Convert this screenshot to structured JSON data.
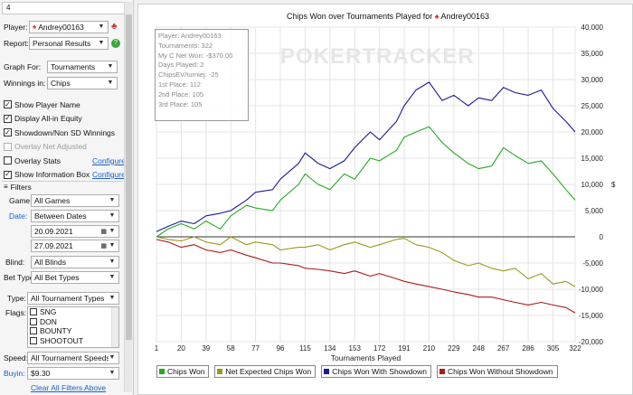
{
  "sidebar": {
    "top_strip_text": "4",
    "player_label": "Player:",
    "player_value": "Andrey00163",
    "report_label": "Report:",
    "report_value": "Personal Results",
    "graph_for_label": "Graph For:",
    "graph_for_value": "Tournaments",
    "winnings_label": "Winnings in:",
    "winnings_value": "Chips",
    "checks": [
      {
        "label": "Show Player Name",
        "checked": true
      },
      {
        "label": "Display All-in Equity",
        "checked": true
      },
      {
        "label": "Showdown/Non SD Winnings",
        "checked": true
      },
      {
        "label": "Overlay Net Adjusted",
        "checked": false,
        "disabled": true
      },
      {
        "label": "Overlay Stats",
        "checked": false,
        "link": "Configure"
      },
      {
        "label": "Show Information Box",
        "checked": true,
        "link": "Configure"
      }
    ],
    "filters_header": "Filters",
    "game_label": "Game:",
    "game_value": "All Games",
    "date_label": "Date:",
    "date_value": "Between Dates",
    "date_from": "20.09.2021",
    "date_to": "27.09.2021",
    "blind_label": "Blind:",
    "blind_value": "All Blinds",
    "bet_type_label": "Bet Type:",
    "bet_type_value": "All Bet Types",
    "type_label": "Type:",
    "type_value": "All Tournament Types",
    "flags_label": "Flags:",
    "flags": [
      "SNG",
      "DON",
      "BOUNTY",
      "SHOOTOUT"
    ],
    "speed_label": "Speed:",
    "speed_value": "All Tournament Speeds",
    "buyin_label": "Buyin:",
    "buyin_value": "$9.30",
    "clear_filters": "Clear All Filters Above"
  },
  "chart_title_prefix": "Chips Won over Tournaments Played for",
  "chart_title_player": "Andrey00163",
  "watermark": "POKERTRACKER",
  "info_box": [
    "Player: Andrey00163",
    "Tournaments: 322",
    "My C Net Won: -$370.00",
    "Days Played: 2",
    "ChipsEV/turniej: -25",
    "1st Place: 112",
    "2nd Place: 105",
    "3rd Place: 105"
  ],
  "colors": {
    "chips_won": "#22aa22",
    "net_expected": "#9a9a1a",
    "with_showdown": "#1a1a99",
    "without_showdown": "#aa1a1a"
  },
  "chart_data": {
    "type": "line",
    "xlabel": "Tournaments Played",
    "ylabel": "",
    "x_ticks": [
      1,
      20,
      39,
      58,
      77,
      96,
      115,
      134,
      153,
      172,
      191,
      210,
      229,
      248,
      267,
      286,
      305,
      322
    ],
    "y_ticks": [
      40000,
      35000,
      30000,
      25000,
      20000,
      15000,
      10000,
      5000,
      0,
      -5000,
      -10000,
      -15000,
      -20000
    ],
    "y_tick_labels": [
      "40,000",
      "35,000",
      "30,000",
      "25,000",
      "20,000",
      "15,000",
      "10,000",
      "5,000",
      "0",
      "-5,000",
      "-10,000",
      "-15,000",
      "-20,000"
    ],
    "y_unit_label": "$",
    "xlim": [
      1,
      322
    ],
    "ylim": [
      -20000,
      40000
    ],
    "x": [
      1,
      10,
      20,
      30,
      39,
      50,
      58,
      70,
      77,
      90,
      96,
      110,
      115,
      125,
      134,
      145,
      153,
      165,
      172,
      185,
      191,
      200,
      210,
      220,
      229,
      240,
      248,
      258,
      267,
      276,
      286,
      296,
      305,
      315,
      322
    ],
    "series": [
      {
        "name": "Chips Won",
        "key": "chips_won",
        "values": [
          0,
          1500,
          2500,
          1500,
          3000,
          1500,
          4000,
          6000,
          5500,
          5000,
          7000,
          10000,
          12000,
          10000,
          9000,
          12000,
          11000,
          15000,
          14500,
          16500,
          19000,
          20000,
          21000,
          18000,
          16000,
          14000,
          13000,
          13500,
          17000,
          15500,
          14000,
          14500,
          12000,
          9000,
          7000
        ]
      },
      {
        "name": "Net Expected Chips Won",
        "key": "net_expected",
        "values": [
          0,
          -500,
          -800,
          0,
          -1000,
          -1500,
          0,
          -1500,
          -1000,
          -1500,
          -2500,
          -2000,
          -2000,
          -1500,
          -2500,
          -1500,
          -1000,
          -2000,
          -1500,
          -500,
          -300,
          -1500,
          -2000,
          -3000,
          -4500,
          -5500,
          -5000,
          -6000,
          -6500,
          -6000,
          -8000,
          -7000,
          -9000,
          -8500,
          -9500
        ]
      },
      {
        "name": "Chips Won With Showdown",
        "key": "with_showdown",
        "values": [
          1000,
          2000,
          3000,
          2500,
          4000,
          4500,
          5000,
          7000,
          8500,
          9000,
          11000,
          14000,
          16000,
          14000,
          13000,
          14500,
          17000,
          20000,
          18500,
          22000,
          25000,
          28000,
          29500,
          26000,
          27000,
          25000,
          26500,
          26000,
          28500,
          27500,
          27000,
          28000,
          24500,
          22000,
          20000
        ]
      },
      {
        "name": "Chips Won Without Showdown",
        "key": "without_showdown",
        "values": [
          -500,
          -1000,
          -2000,
          -1500,
          -2500,
          -3000,
          -2500,
          -3500,
          -4000,
          -5000,
          -5000,
          -5500,
          -6000,
          -6200,
          -6500,
          -7000,
          -6500,
          -7500,
          -7000,
          -8000,
          -8500,
          -9000,
          -9500,
          -10000,
          -10500,
          -11000,
          -11500,
          -11500,
          -12000,
          -12500,
          -13000,
          -12500,
          -13000,
          -13500,
          -14500
        ]
      }
    ]
  }
}
